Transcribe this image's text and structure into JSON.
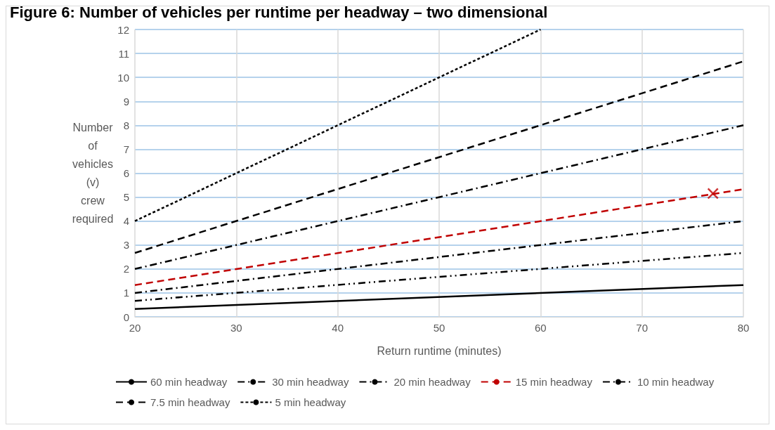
{
  "chart_data": {
    "type": "line",
    "title": "Figure 6: Number of vehicles per runtime per headway – two dimensional",
    "xlabel": "Return runtime (minutes)",
    "ylabel": "Number\nof\nvehicles\n(v)\ncrew\nrequired",
    "xlim": [
      20,
      80
    ],
    "xticks": [
      20,
      30,
      40,
      50,
      60,
      70,
      80
    ],
    "ylim": [
      0,
      12
    ],
    "yticks": [
      0,
      1,
      2,
      3,
      4,
      5,
      6,
      7,
      8,
      9,
      10,
      11,
      12
    ],
    "grid": true,
    "legend": "bottom",
    "marker": "none",
    "series": [
      {
        "name": "60 min headway",
        "color": "#000000",
        "line_style": "solid",
        "x": [
          20,
          80
        ],
        "values": [
          0.33,
          1.33
        ]
      },
      {
        "name": "30 min headway",
        "color": "#000000",
        "line_style": "dashdotdot",
        "x": [
          20,
          80
        ],
        "values": [
          0.67,
          2.67
        ]
      },
      {
        "name": "20 min headway",
        "color": "#000000",
        "line_style": "dashdot",
        "x": [
          20,
          80
        ],
        "values": [
          1,
          4
        ]
      },
      {
        "name": "15 min headway",
        "color": "#c00000",
        "line_style": "dashed",
        "x": [
          20,
          80
        ],
        "values": [
          1.33,
          5.33
        ]
      },
      {
        "name": "10 min headway",
        "color": "#000000",
        "line_style": "dashdot",
        "x": [
          20,
          80
        ],
        "values": [
          2,
          8
        ]
      },
      {
        "name": "7.5 min headway",
        "color": "#000000",
        "line_style": "dashed",
        "x": [
          20,
          80
        ],
        "values": [
          2.67,
          10.67
        ]
      },
      {
        "name": "5 min headway",
        "color": "#000000",
        "line_style": "dotted",
        "x": [
          20,
          60
        ],
        "values": [
          4,
          12
        ]
      },
      {
        "type": "scatter",
        "marker": "cross",
        "color": "#c00000",
        "x": [
          77
        ],
        "values": [
          5.15
        ]
      }
    ]
  }
}
